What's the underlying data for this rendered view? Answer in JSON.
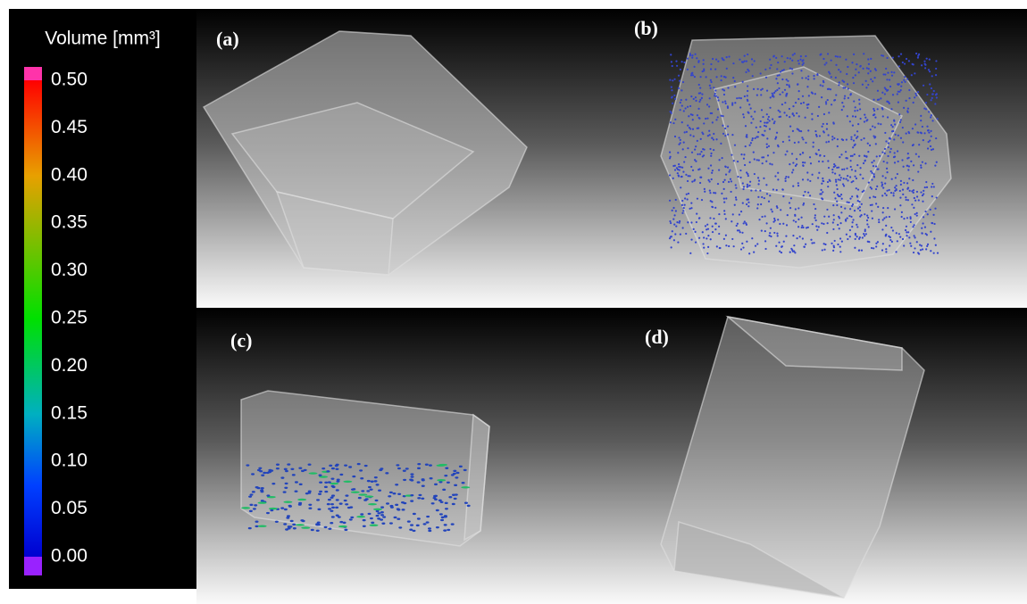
{
  "colorbar": {
    "title": "Volume [mm³]",
    "ticks": [
      {
        "value": 0.5,
        "label": "0.50"
      },
      {
        "value": 0.45,
        "label": "0.45"
      },
      {
        "value": 0.4,
        "label": "0.40"
      },
      {
        "value": 0.35,
        "label": "0.35"
      },
      {
        "value": 0.3,
        "label": "0.30"
      },
      {
        "value": 0.25,
        "label": "0.25"
      },
      {
        "value": 0.2,
        "label": "0.20"
      },
      {
        "value": 0.15,
        "label": "0.15"
      },
      {
        "value": 0.1,
        "label": "0.10"
      },
      {
        "value": 0.05,
        "label": "0.05"
      },
      {
        "value": 0,
        "label": "0.00"
      }
    ]
  },
  "panels": [
    {
      "label": "(a)"
    },
    {
      "label": "(b)"
    },
    {
      "label": "(c)"
    },
    {
      "label": "(d)"
    }
  ]
}
